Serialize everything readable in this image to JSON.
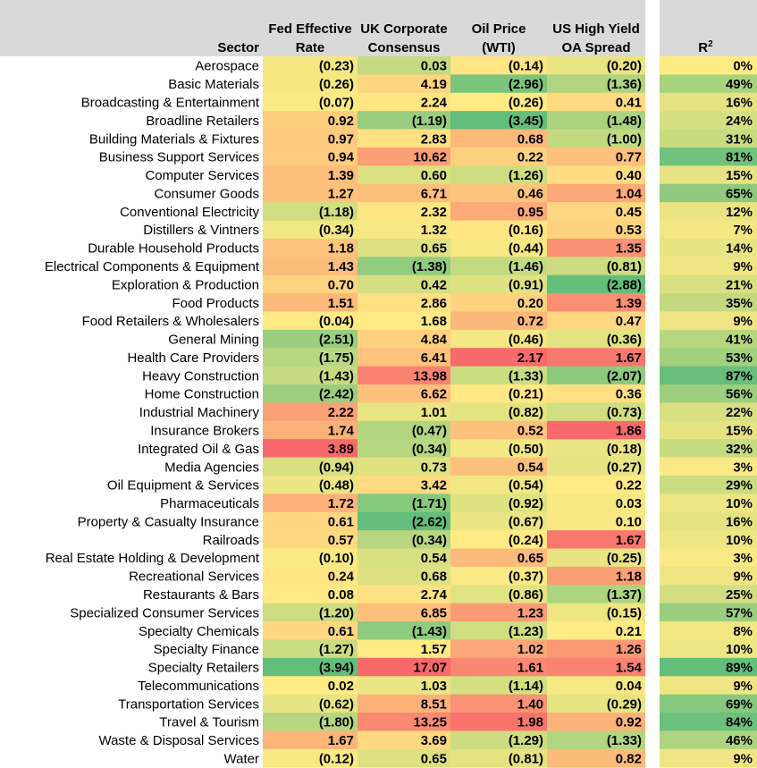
{
  "chart_data": {
    "type": "heatmap",
    "headers": {
      "sector": "Sector",
      "cols": [
        [
          "Fed Effective",
          "Rate"
        ],
        [
          "UK Corporate",
          "Consensus"
        ],
        [
          "Oil Price",
          "(WTI)"
        ],
        [
          "US High Yield",
          "OA Spread"
        ]
      ],
      "r2": "R2"
    },
    "rows": [
      {
        "sector": "Aerospace",
        "values": [
          -0.23,
          0.03,
          -0.14,
          -0.2
        ],
        "r2": 0
      },
      {
        "sector": "Basic Materials",
        "values": [
          -0.26,
          4.19,
          -2.96,
          -1.36
        ],
        "r2": 49
      },
      {
        "sector": "Broadcasting & Entertainment",
        "values": [
          -0.07,
          2.24,
          -0.26,
          0.41
        ],
        "r2": 16
      },
      {
        "sector": "Broadline Retailers",
        "values": [
          0.92,
          -1.19,
          -3.45,
          -1.48
        ],
        "r2": 24
      },
      {
        "sector": "Building Materials & Fixtures",
        "values": [
          0.97,
          2.83,
          0.68,
          -1.0
        ],
        "r2": 31
      },
      {
        "sector": "Business Support Services",
        "values": [
          0.94,
          10.62,
          0.22,
          0.77
        ],
        "r2": 81
      },
      {
        "sector": "Computer Services",
        "values": [
          1.39,
          0.6,
          -1.26,
          0.4
        ],
        "r2": 15
      },
      {
        "sector": "Consumer Goods",
        "values": [
          1.27,
          6.71,
          0.46,
          1.04
        ],
        "r2": 65
      },
      {
        "sector": "Conventional Electricity",
        "values": [
          -1.18,
          2.32,
          0.95,
          0.45
        ],
        "r2": 12
      },
      {
        "sector": "Distillers & Vintners",
        "values": [
          -0.34,
          1.32,
          -0.16,
          0.53
        ],
        "r2": 7
      },
      {
        "sector": "Durable Household Products",
        "values": [
          1.18,
          0.65,
          -0.44,
          1.35
        ],
        "r2": 14
      },
      {
        "sector": "Electrical Components & Equipment",
        "values": [
          1.43,
          -1.38,
          -1.46,
          -0.81
        ],
        "r2": 9
      },
      {
        "sector": "Exploration & Production",
        "values": [
          0.7,
          0.42,
          -0.91,
          -2.88
        ],
        "r2": 21
      },
      {
        "sector": "Food Products",
        "values": [
          1.51,
          2.86,
          0.2,
          1.39
        ],
        "r2": 35
      },
      {
        "sector": "Food Retailers & Wholesalers",
        "values": [
          -0.04,
          1.68,
          0.72,
          0.47
        ],
        "r2": 9
      },
      {
        "sector": "General Mining",
        "values": [
          -2.51,
          4.84,
          -0.46,
          -0.36
        ],
        "r2": 41
      },
      {
        "sector": "Health Care Providers",
        "values": [
          -1.75,
          6.41,
          2.17,
          1.67
        ],
        "r2": 53
      },
      {
        "sector": "Heavy Construction",
        "values": [
          -1.43,
          13.98,
          -1.33,
          -2.07
        ],
        "r2": 87
      },
      {
        "sector": "Home Construction",
        "values": [
          -2.42,
          6.62,
          -0.21,
          0.36
        ],
        "r2": 56
      },
      {
        "sector": "Industrial Machinery",
        "values": [
          2.22,
          1.01,
          -0.82,
          -0.73
        ],
        "r2": 22
      },
      {
        "sector": "Insurance Brokers",
        "values": [
          1.74,
          -0.47,
          0.52,
          1.86
        ],
        "r2": 15
      },
      {
        "sector": "Integrated Oil & Gas",
        "values": [
          3.89,
          -0.34,
          -0.5,
          -0.18
        ],
        "r2": 32
      },
      {
        "sector": "Media Agencies",
        "values": [
          -0.94,
          0.73,
          0.54,
          -0.27
        ],
        "r2": 3
      },
      {
        "sector": "Oil Equipment & Services",
        "values": [
          -0.48,
          3.42,
          -0.54,
          0.22
        ],
        "r2": 29
      },
      {
        "sector": "Pharmaceuticals",
        "values": [
          1.72,
          -1.71,
          -0.92,
          0.03
        ],
        "r2": 10
      },
      {
        "sector": "Property & Casualty Insurance",
        "values": [
          0.61,
          -2.62,
          -0.67,
          0.1
        ],
        "r2": 16
      },
      {
        "sector": "Railroads",
        "values": [
          0.57,
          -0.34,
          -0.24,
          1.67
        ],
        "r2": 10
      },
      {
        "sector": "Real Estate Holding & Development",
        "values": [
          -0.1,
          0.54,
          0.65,
          -0.25
        ],
        "r2": 3
      },
      {
        "sector": "Recreational Services",
        "values": [
          0.24,
          0.68,
          -0.37,
          1.18
        ],
        "r2": 9
      },
      {
        "sector": "Restaurants & Bars",
        "values": [
          0.08,
          2.74,
          -0.86,
          -1.37
        ],
        "r2": 25
      },
      {
        "sector": "Specialized Consumer Services",
        "values": [
          -1.2,
          6.85,
          1.23,
          -0.15
        ],
        "r2": 57
      },
      {
        "sector": "Specialty Chemicals",
        "values": [
          0.61,
          -1.43,
          -1.23,
          0.21
        ],
        "r2": 8
      },
      {
        "sector": "Specialty Finance",
        "values": [
          -1.27,
          1.57,
          1.02,
          1.26
        ],
        "r2": 10
      },
      {
        "sector": "Specialty Retailers",
        "values": [
          -3.94,
          17.07,
          1.61,
          1.54
        ],
        "r2": 89
      },
      {
        "sector": "Telecommunications",
        "values": [
          0.02,
          1.03,
          -1.14,
          0.04
        ],
        "r2": 9
      },
      {
        "sector": "Transportation Services",
        "values": [
          -0.62,
          8.51,
          1.4,
          -0.29
        ],
        "r2": 69
      },
      {
        "sector": "Travel & Tourism",
        "values": [
          -1.8,
          13.25,
          1.98,
          0.92
        ],
        "r2": 84
      },
      {
        "sector": "Waste & Disposal Services",
        "values": [
          1.67,
          3.69,
          -1.29,
          -1.33
        ],
        "r2": 46
      },
      {
        "sector": "Water",
        "values": [
          -0.12,
          0.65,
          -0.81,
          0.82
        ],
        "r2": 9
      }
    ],
    "color_scale": {
      "low": "#63be7b",
      "mid": "#ffeb84",
      "high": "#f8696b",
      "r2_low": "#ffeb84",
      "r2_high": "#63be7b"
    },
    "header_bg": "#d9d9d9"
  }
}
